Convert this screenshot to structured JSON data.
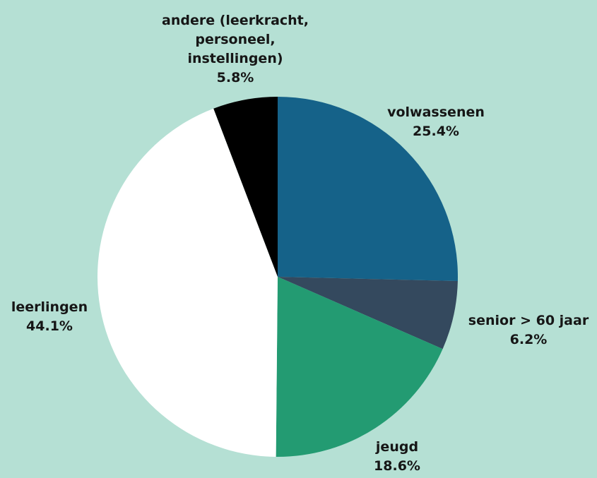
{
  "chart_data": {
    "type": "pie",
    "categories": [
      "volwassenen",
      "senior > 60 jaar",
      "jeugd",
      "leerlingen",
      "andere (leerkracht, personeel, instellingen)"
    ],
    "values": [
      25.4,
      6.2,
      18.6,
      44.1,
      5.8
    ],
    "value_labels": [
      "25.4%",
      "6.2%",
      "18.6%",
      "44.1%",
      "5.8%"
    ],
    "colors": [
      "#156289",
      "#34495e",
      "#239b72",
      "#ffffff",
      "#000000"
    ]
  }
}
